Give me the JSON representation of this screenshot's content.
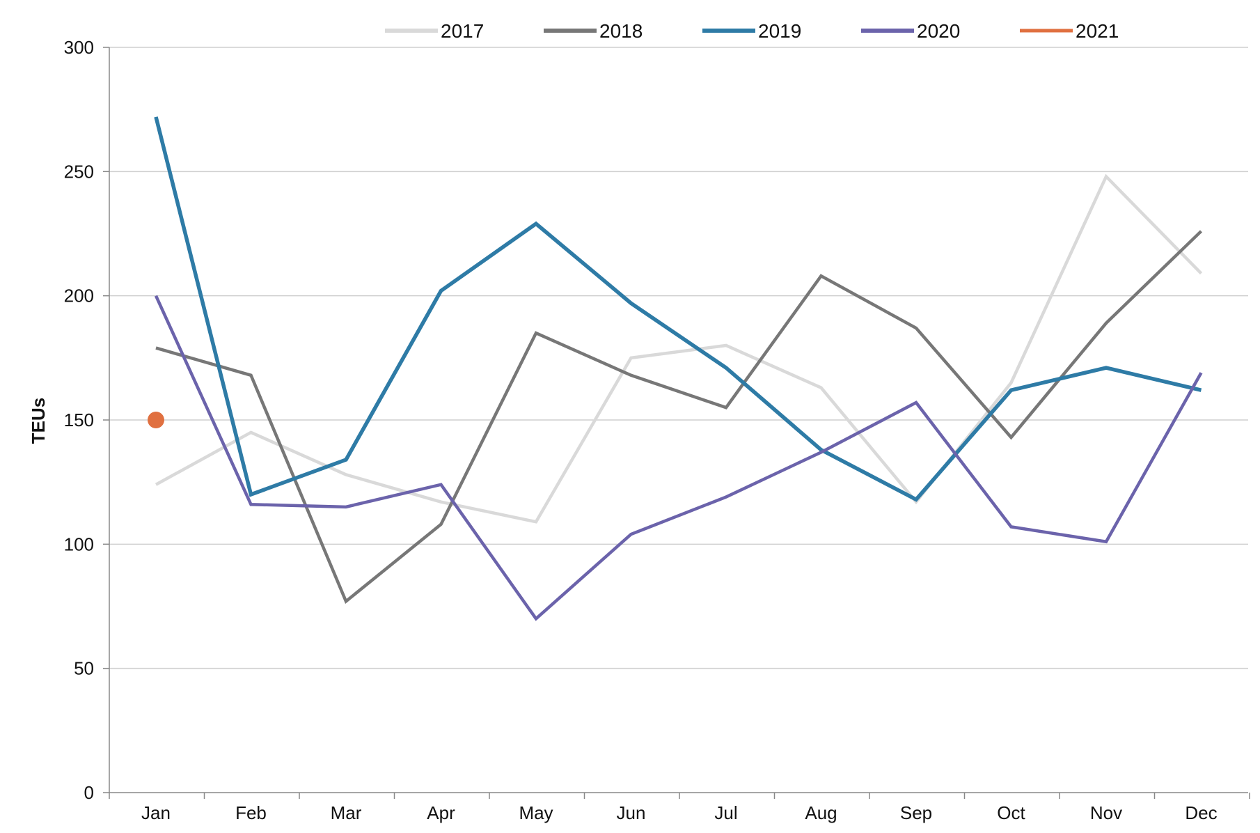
{
  "chart_data": {
    "type": "line",
    "title": "",
    "xlabel": "",
    "ylabel": "TEUs",
    "ylim": [
      0,
      300
    ],
    "yticks": [
      0,
      50,
      100,
      150,
      200,
      250,
      300
    ],
    "ytick_labels": [
      "0",
      "50",
      "100",
      "150",
      "200",
      "250",
      "300"
    ],
    "grid": "horizontal",
    "legend_position": "top",
    "categories": [
      "Jan",
      "Feb",
      "Mar",
      "Apr",
      "May",
      "Jun",
      "Jul",
      "Aug",
      "Sep",
      "Oct",
      "Nov",
      "Dec"
    ],
    "series": [
      {
        "name": "2017",
        "color": "#d9d9d9",
        "marker": "line",
        "values": [
          124,
          145,
          128,
          117,
          109,
          175,
          180,
          163,
          117,
          165,
          248,
          209
        ]
      },
      {
        "name": "2018",
        "color": "#777777",
        "marker": "line",
        "values": [
          179,
          168,
          77,
          108,
          185,
          168,
          155,
          208,
          187,
          143,
          189,
          226
        ]
      },
      {
        "name": "2019",
        "color": "#2e7ba6",
        "marker": "line",
        "values": [
          272,
          120,
          134,
          202,
          229,
          197,
          171,
          138,
          118,
          162,
          171,
          162
        ]
      },
      {
        "name": "2020",
        "color": "#6b63ab",
        "marker": "line",
        "values": [
          200,
          116,
          115,
          124,
          70,
          104,
          119,
          137,
          157,
          107,
          101,
          169
        ]
      },
      {
        "name": "2021",
        "color": "#e07040",
        "marker": "dot",
        "values": [
          150,
          null,
          null,
          null,
          null,
          null,
          null,
          null,
          null,
          null,
          null,
          null
        ]
      }
    ]
  }
}
